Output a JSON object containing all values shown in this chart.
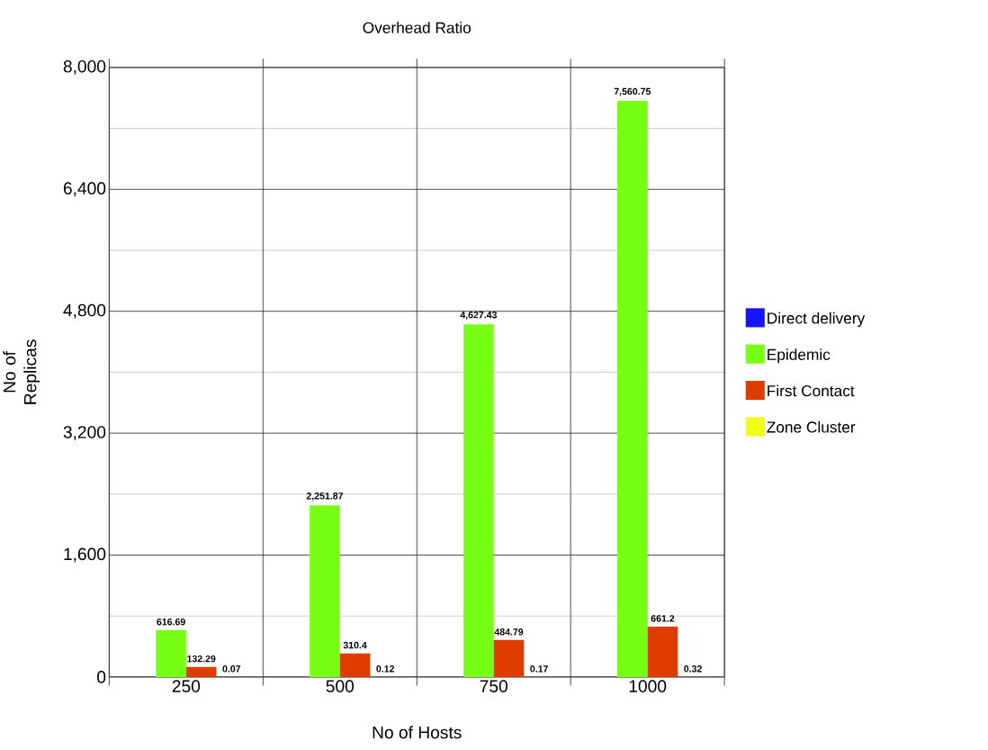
{
  "chart_data": {
    "type": "bar",
    "title": "Overhead Ratio",
    "xlabel": "No of Hosts",
    "ylabel": "No of Replicas",
    "categories": [
      "250",
      "500",
      "750",
      "1000"
    ],
    "series": [
      {
        "name": "Direct delivery",
        "color": "#1414ff",
        "values": [
          null,
          null,
          null,
          null
        ]
      },
      {
        "name": "Epidemic",
        "color": "#77ff14",
        "values": [
          616.69,
          2251.87,
          4627.43,
          7560.75
        ],
        "value_labels": [
          "616.69",
          "2,251.87",
          "4,627.43",
          "7,560.75"
        ]
      },
      {
        "name": "First Contact",
        "color": "#e03c00",
        "values": [
          132.29,
          310.4,
          484.79,
          661.2
        ],
        "value_labels": [
          "132.29",
          "310.4",
          "484.79",
          "661.2"
        ]
      },
      {
        "name": "Zone Cluster",
        "color": "#f0ff14",
        "values": [
          0.07,
          0.12,
          0.17,
          0.32
        ],
        "value_labels": [
          "0.07",
          "0.12",
          "0.17",
          "0.32"
        ]
      }
    ],
    "ylim": [
      0,
      8000
    ],
    "yticks": [
      {
        "value": 0,
        "label": "0"
      },
      {
        "value": 1600,
        "label": "1,600"
      },
      {
        "value": 3200,
        "label": "3,200"
      },
      {
        "value": 4800,
        "label": "4,800"
      },
      {
        "value": 6400,
        "label": "6,400"
      },
      {
        "value": 8000,
        "label": "8,000"
      }
    ],
    "grid": true,
    "legend": "right"
  }
}
